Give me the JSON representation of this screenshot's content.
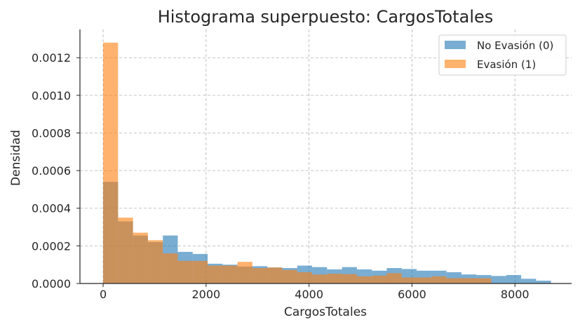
{
  "chart_data": {
    "type": "bar",
    "subtype": "overlaid-histogram",
    "title": "Histograma superpuesto: CargosTotales",
    "xlabel": "CargosTotales",
    "ylabel": "Densidad",
    "xlim": [
      -450,
      9100
    ],
    "ylim": [
      0,
      0.00135
    ],
    "xticks": [
      0,
      2000,
      4000,
      6000,
      8000
    ],
    "xtick_labels": [
      "0",
      "2000",
      "4000",
      "6000",
      "8000"
    ],
    "yticks": [
      0,
      0.0002,
      0.0004,
      0.0006,
      0.0008,
      0.001,
      0.0012
    ],
    "ytick_labels": [
      "0.0000",
      "0.0002",
      "0.0004",
      "0.0006",
      "0.0008",
      "0.0010",
      "0.0012"
    ],
    "grid": true,
    "legend_position": "top-right",
    "series": [
      {
        "name": "No Evasión (0)",
        "color": "#1f77b4",
        "opacity": 0.6,
        "bin_start": 0,
        "bin_width": 290,
        "values": [
          0.00054,
          0.00033,
          0.000255,
          0.00022,
          0.000255,
          0.000168,
          0.000157,
          0.000105,
          0.0001,
          9e-05,
          9.2e-05,
          8.5e-05,
          8.2e-05,
          9.5e-05,
          8.7e-05,
          7.5e-05,
          8.7e-05,
          7.5e-05,
          6.8e-05,
          8.2e-05,
          7.7e-05,
          6.8e-05,
          6.8e-05,
          6e-05,
          4.8e-05,
          4.5e-05,
          4e-05,
          4.5e-05,
          2.5e-05,
          1.5e-05
        ]
      },
      {
        "name": "Evasión (1)",
        "color": "#ff7f0e",
        "opacity": 0.6,
        "bin_start": 0,
        "bin_width": 290,
        "values": [
          0.00128,
          0.00035,
          0.00027,
          0.00023,
          0.00016,
          0.00012,
          0.00012,
          9.5e-05,
          9.5e-05,
          0.000115,
          8.2e-05,
          8.5e-05,
          7.2e-05,
          6e-05,
          4.8e-05,
          5.2e-05,
          5e-05,
          3.8e-05,
          4.2e-05,
          5.5e-05,
          3.2e-05,
          3.2e-05,
          3.8e-05,
          2.8e-05,
          2.8e-05,
          2.8e-05
        ]
      }
    ]
  }
}
